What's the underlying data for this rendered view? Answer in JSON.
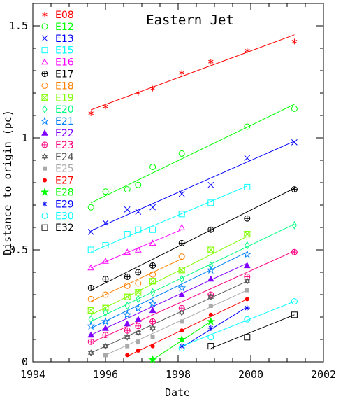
{
  "chart_data": {
    "type": "scatter",
    "title": "Eastern Jet",
    "xlabel": "Date",
    "ylabel": "Distance to origin (pc)",
    "xlim": [
      1994,
      2002
    ],
    "ylim": [
      0,
      1.6
    ],
    "xticks": [
      1994,
      1996,
      1998,
      2000,
      2002
    ],
    "yticks": [
      0,
      0.5,
      1,
      1.5
    ],
    "ytick_labels": [
      "0",
      "0.5",
      "1",
      "1.5"
    ],
    "legend_position": "top-left",
    "series": [
      {
        "name": "E08",
        "color": "#ff0000",
        "marker": "asterisk",
        "x": [
          1995.6,
          1996.0,
          1996.9,
          1997.3,
          1998.1,
          1998.9,
          1999.9,
          2001.2
        ],
        "y": [
          1.11,
          1.14,
          1.2,
          1.22,
          1.29,
          1.34,
          1.39,
          1.43
        ],
        "fit": [
          [
            1995.6,
            1.125
          ],
          [
            2001.2,
            1.46
          ]
        ]
      },
      {
        "name": "E12",
        "color": "#00ff00",
        "marker": "circle",
        "x": [
          1995.6,
          1996.0,
          1996.6,
          1996.9,
          1997.3,
          1998.1,
          1999.9,
          2001.2
        ],
        "y": [
          0.69,
          0.76,
          0.77,
          0.79,
          0.87,
          0.93,
          1.05,
          1.13
        ],
        "fit": [
          [
            1995.6,
            0.71
          ],
          [
            2001.2,
            1.15
          ]
        ]
      },
      {
        "name": "E13",
        "color": "#0000ff",
        "marker": "x",
        "x": [
          1995.6,
          1996.0,
          1996.6,
          1996.9,
          1997.3,
          1998.1,
          1998.9,
          1999.9,
          2001.2
        ],
        "y": [
          0.58,
          0.62,
          0.68,
          0.67,
          0.69,
          0.75,
          0.79,
          0.91,
          0.98
        ],
        "fit": [
          [
            1995.6,
            0.585
          ],
          [
            2001.2,
            0.985
          ]
        ]
      },
      {
        "name": "E15",
        "color": "#00ffff",
        "marker": "square",
        "x": [
          1995.6,
          1996.0,
          1996.6,
          1996.9,
          1997.3,
          1998.1,
          1998.9,
          1999.9
        ],
        "y": [
          0.5,
          0.52,
          0.57,
          0.59,
          0.59,
          0.66,
          0.71,
          0.78
        ],
        "fit": [
          [
            1995.6,
            0.49
          ],
          [
            1999.9,
            0.785
          ]
        ]
      },
      {
        "name": "E16",
        "color": "#ff00ff",
        "marker": "triangle",
        "x": [
          1995.6,
          1996.0,
          1996.6,
          1996.9,
          1997.3,
          1998.1
        ],
        "y": [
          0.42,
          0.45,
          0.49,
          0.5,
          0.53,
          0.6
        ],
        "fit": [
          [
            1995.6,
            0.42
          ],
          [
            1998.1,
            0.59
          ]
        ]
      },
      {
        "name": "E17",
        "color": "#000000",
        "marker": "circle-plus",
        "x": [
          1995.6,
          1996.0,
          1996.6,
          1996.9,
          1997.3,
          1998.1,
          1998.9,
          1999.9,
          2001.2
        ],
        "y": [
          0.33,
          0.37,
          0.38,
          0.4,
          0.43,
          0.53,
          0.59,
          0.64,
          0.77
        ],
        "fit": [
          [
            1995.6,
            0.32
          ],
          [
            2001.2,
            0.775
          ]
        ]
      },
      {
        "name": "E18",
        "color": "#ff8000",
        "marker": "circle",
        "x": [
          1995.6,
          1996.0,
          1996.6,
          1996.9,
          1997.3,
          1998.1
        ],
        "y": [
          0.28,
          0.3,
          0.34,
          0.35,
          0.39,
          0.47
        ],
        "fit": [
          [
            1995.6,
            0.27
          ],
          [
            1998.1,
            0.46
          ]
        ]
      },
      {
        "name": "E19",
        "color": "#80ff00",
        "marker": "hourglass",
        "x": [
          1995.6,
          1996.0,
          1996.6,
          1996.9,
          1997.3,
          1998.1,
          1998.9,
          1999.9
        ],
        "y": [
          0.23,
          0.24,
          0.29,
          0.31,
          0.36,
          0.41,
          0.5,
          0.57
        ],
        "fit": [
          [
            1995.6,
            0.21
          ],
          [
            1999.9,
            0.56
          ]
        ]
      },
      {
        "name": "E20",
        "color": "#00ff80",
        "marker": "diamond",
        "x": [
          1995.6,
          1996.0,
          1996.6,
          1996.9,
          1997.3,
          1998.1,
          1998.9,
          1999.9,
          2001.2
        ],
        "y": [
          0.19,
          0.22,
          0.25,
          0.28,
          0.31,
          0.37,
          0.43,
          0.52,
          0.61
        ],
        "fit": [
          [
            1995.6,
            0.18
          ],
          [
            2001.2,
            0.615
          ]
        ]
      },
      {
        "name": "E21",
        "color": "#0080ff",
        "marker": "star-open",
        "x": [
          1995.6,
          1996.0,
          1996.6,
          1996.9,
          1997.3,
          1998.1,
          1998.9,
          1999.9
        ],
        "y": [
          0.16,
          0.18,
          0.21,
          0.24,
          0.26,
          0.33,
          0.41,
          0.48
        ],
        "fit": [
          [
            1995.6,
            0.15
          ],
          [
            1999.9,
            0.49
          ]
        ]
      },
      {
        "name": "E22",
        "color": "#8000ff",
        "marker": "triangle-filled",
        "x": [
          1995.6,
          1996.0,
          1996.6,
          1996.9,
          1997.3,
          1998.1,
          1998.9,
          1999.9
        ],
        "y": [
          0.12,
          0.15,
          0.17,
          0.19,
          0.23,
          0.3,
          0.37,
          0.43
        ],
        "fit": [
          [
            1995.6,
            0.12
          ],
          [
            1999.9,
            0.44
          ]
        ]
      },
      {
        "name": "E23",
        "color": "#ff0080",
        "marker": "circle-plus",
        "x": [
          1995.6,
          1996.0,
          1996.6,
          1996.9,
          1997.3,
          1998.1,
          1998.9,
          1999.9,
          2001.2
        ],
        "y": [
          0.09,
          0.12,
          0.14,
          0.16,
          0.18,
          0.24,
          0.3,
          0.38,
          0.49
        ],
        "fit": [
          [
            1995.6,
            0.085
          ],
          [
            2001.2,
            0.495
          ]
        ]
      },
      {
        "name": "E24",
        "color": "#555555",
        "marker": "star-of-david",
        "x": [
          1995.6,
          1996.0,
          1996.6,
          1996.9,
          1997.3,
          1998.1,
          1998.9,
          1999.9
        ],
        "y": [
          0.04,
          0.07,
          0.11,
          0.13,
          0.15,
          0.22,
          0.29,
          0.36
        ],
        "fit": [
          [
            1995.6,
            0.04
          ],
          [
            1999.9,
            0.36
          ]
        ]
      },
      {
        "name": "E25",
        "color": "#aaaaaa",
        "marker": "square-filled",
        "x": [
          1996.0,
          1996.6,
          1996.9,
          1997.3,
          1998.1,
          1998.9,
          1999.9
        ],
        "y": [
          0.03,
          0.07,
          0.09,
          0.11,
          0.18,
          0.25,
          0.32
        ],
        "fit": [
          [
            1996.0,
            0.03
          ],
          [
            1999.9,
            0.32
          ]
        ]
      },
      {
        "name": "E27",
        "color": "#ff0000",
        "marker": "circle-filled",
        "x": [
          1996.6,
          1996.9,
          1997.3,
          1998.1,
          1998.9,
          1999.9
        ],
        "y": [
          0.03,
          0.05,
          0.07,
          0.14,
          0.21,
          0.28
        ],
        "fit": [
          [
            1996.6,
            0.025
          ],
          [
            1999.9,
            0.28
          ]
        ]
      },
      {
        "name": "E28",
        "color": "#00ff00",
        "marker": "star-filled",
        "x": [
          1997.3,
          1998.1,
          1998.9
        ],
        "y": [
          0.01,
          0.1,
          0.18
        ],
        "fit": [
          [
            1997.3,
            0.01
          ],
          [
            1998.9,
            0.18
          ]
        ]
      },
      {
        "name": "E29",
        "color": "#0000ff",
        "marker": "star-asterisk",
        "x": [
          1998.1,
          1998.9,
          1999.9
        ],
        "y": [
          0.07,
          0.15,
          0.24
        ],
        "fit": [
          [
            1998.1,
            0.065
          ],
          [
            1999.9,
            0.245
          ]
        ]
      },
      {
        "name": "E30",
        "color": "#00ffff",
        "marker": "circle",
        "x": [
          1998.1,
          1998.9,
          1999.9,
          2001.2
        ],
        "y": [
          0.06,
          0.11,
          0.19,
          0.27
        ],
        "fit": [
          [
            1998.1,
            0.07
          ],
          [
            2001.2,
            0.27
          ]
        ]
      },
      {
        "name": "E32",
        "color": "#000000",
        "marker": "square",
        "x": [
          1998.9,
          1999.9,
          2001.2
        ],
        "y": [
          0.07,
          0.11,
          0.21
        ],
        "fit": [
          [
            1998.9,
            0.06
          ],
          [
            2001.2,
            0.21
          ]
        ]
      }
    ]
  }
}
